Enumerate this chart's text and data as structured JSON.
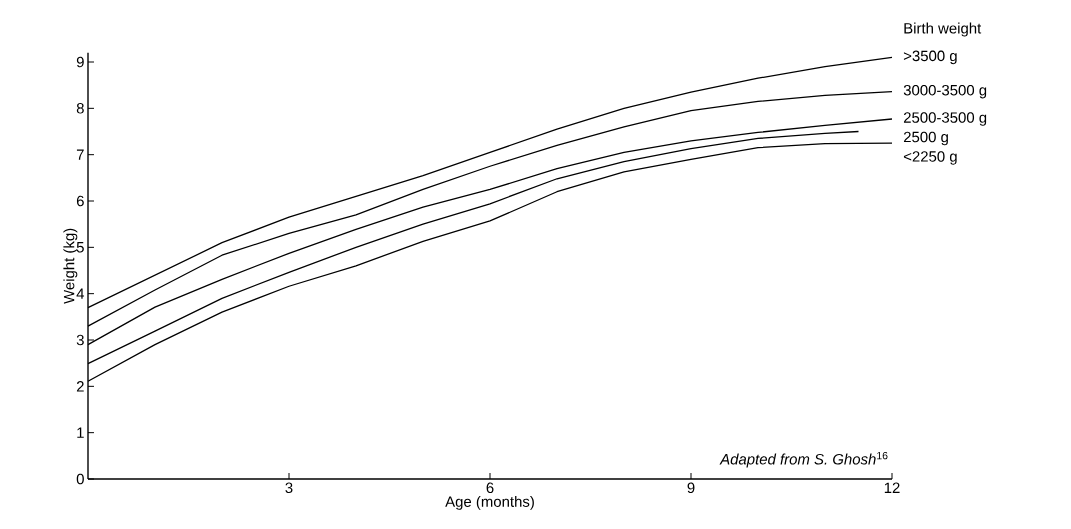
{
  "chart_data": {
    "type": "line",
    "xlabel": "Age (months)",
    "ylabel": "Weight (kg)",
    "legend_title": "Birth weight",
    "annotations": [
      "*Adapted from S. Ghosh*$^{16}$"
    ],
    "x": [
      0,
      1,
      2,
      3,
      4,
      5,
      6,
      7,
      8,
      9,
      10,
      11,
      12
    ],
    "series": [
      {
        "name": ">3500 g",
        "color": "#000000",
        "values": [
          3.7,
          4.4,
          5.1,
          5.65,
          6.1,
          6.55,
          7.05,
          7.55,
          8.0,
          8.35,
          8.65,
          8.9,
          9.1
        ]
      },
      {
        "name": "3000-3500 g",
        "color": "#000000",
        "values": [
          3.3,
          4.08,
          4.83,
          5.3,
          5.7,
          6.25,
          6.75,
          7.2,
          7.6,
          7.95,
          8.15,
          8.28,
          8.36
        ]
      },
      {
        "name": "2500-3500 g",
        "color": "#000000",
        "values": [
          2.9,
          3.71,
          4.31,
          4.87,
          5.39,
          5.87,
          6.25,
          6.7,
          7.05,
          7.3,
          7.48,
          7.63,
          7.77
        ]
      },
      {
        "name": "2500 g",
        "color": "#000000",
        "x": [
          0,
          1,
          2,
          3,
          4,
          5,
          6,
          7,
          8,
          9,
          10,
          11,
          11.5
        ],
        "values": [
          2.49,
          3.19,
          3.9,
          4.46,
          5.0,
          5.5,
          5.94,
          6.48,
          6.85,
          7.13,
          7.35,
          7.46,
          7.5
        ]
      },
      {
        "name": "<2250 g",
        "color": "#000000",
        "values": [
          2.11,
          2.9,
          3.6,
          4.16,
          4.6,
          5.13,
          5.57,
          6.2,
          6.63,
          6.9,
          7.15,
          7.24,
          7.25
        ]
      }
    ],
    "xlim": [
      0,
      12
    ],
    "ylim": [
      0,
      9.2
    ],
    "xticks": [
      3,
      6,
      9,
      12
    ],
    "yticks": [
      0,
      1,
      2,
      3,
      4,
      5,
      6,
      7,
      8,
      9
    ],
    "line_style": "solid"
  }
}
